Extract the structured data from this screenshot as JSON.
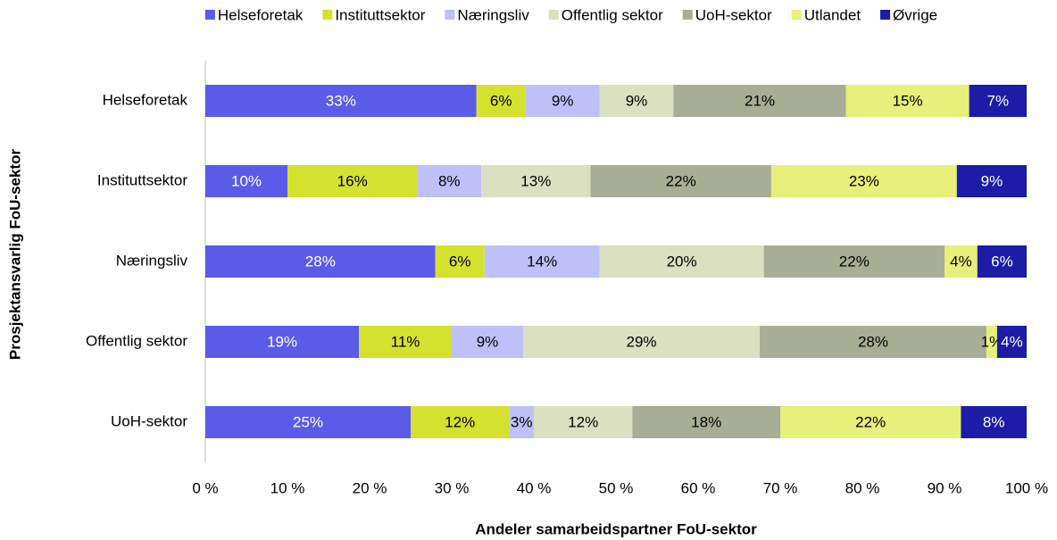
{
  "chart_data": {
    "type": "stacked-bar-horizontal",
    "x_label": "Andeler samarbeidspartner FoU-sektor",
    "y_label": "Prosjektansvarlig FoU-sektor",
    "categories": [
      "Helseforetak",
      "Instituttsektor",
      "Næringsliv",
      "Offentlig sektor",
      "UoH-sektor"
    ],
    "series": [
      {
        "name": "Helseforetak",
        "color": "#5b5bea",
        "values": [
          33,
          10.0,
          28,
          18.7,
          25
        ],
        "value_labels": [
          "33%",
          "10%",
          "28%",
          "19%",
          "25%"
        ]
      },
      {
        "name": "Instituttsektor",
        "color": "#d4e12f",
        "values": [
          6,
          15.8,
          6,
          11.3,
          12
        ],
        "value_labels": [
          "6%",
          "16%",
          "6%",
          "11%",
          "12%"
        ]
      },
      {
        "name": "Næringsliv",
        "color": "#c0c0f8",
        "values": [
          9,
          7.8,
          14,
          8.7,
          3
        ],
        "value_labels": [
          "9%",
          "8%",
          "14%",
          "9%",
          "3%"
        ]
      },
      {
        "name": "Offentlig sektor",
        "color": "#dbe0c0",
        "values": [
          9,
          13.3,
          20,
          28.8,
          12
        ],
        "value_labels": [
          "9%",
          "13%",
          "20%",
          "29%",
          "12%"
        ]
      },
      {
        "name": "UoH-sektor",
        "color": "#a8ad96",
        "values": [
          21,
          22.0,
          22,
          27.6,
          18
        ],
        "value_labels": [
          "21%",
          "22%",
          "22%",
          "28%",
          "18%"
        ]
      },
      {
        "name": "Utlandet",
        "color": "#e6f07a",
        "values": [
          15,
          22.6,
          4,
          1.3,
          22
        ],
        "value_labels": [
          "15%",
          "23%",
          "4%",
          "1%",
          "22%"
        ]
      },
      {
        "name": "Øvrige",
        "color": "#1c1ca8",
        "values": [
          7,
          8.5,
          6,
          3.6,
          8
        ],
        "value_labels": [
          "7%",
          "9%",
          "6%",
          "4%",
          "8%"
        ]
      }
    ],
    "xlim": [
      0,
      100
    ],
    "xticks": [
      {
        "value": 0,
        "label": "0 %"
      },
      {
        "value": 10,
        "label": "10 %"
      },
      {
        "value": 20,
        "label": "20 %"
      },
      {
        "value": 30,
        "label": "30 %"
      },
      {
        "value": 40,
        "label": "40 %"
      },
      {
        "value": 50,
        "label": "50 %"
      },
      {
        "value": 60,
        "label": "60 %"
      },
      {
        "value": 70,
        "label": "70 %"
      },
      {
        "value": 80,
        "label": "80 %"
      },
      {
        "value": 90,
        "label": "90 %"
      },
      {
        "value": 100,
        "label": "100 %"
      }
    ],
    "grid": false,
    "legend": "top"
  }
}
